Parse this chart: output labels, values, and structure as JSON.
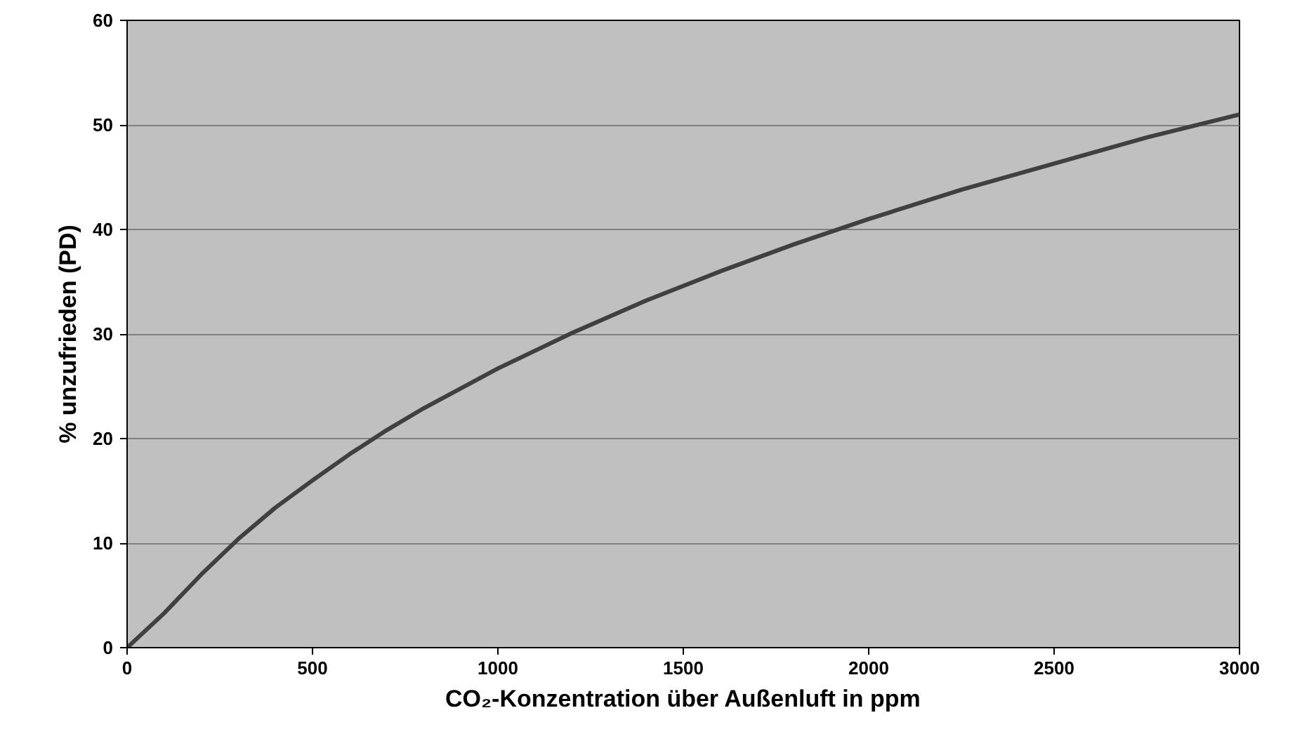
{
  "chart_data": {
    "type": "line",
    "xlabel": "CO₂-Konzentration über Außenluft in ppm",
    "ylabel": "% unzufrieden (PD)",
    "x": [
      0,
      100,
      200,
      300,
      400,
      500,
      600,
      700,
      800,
      1000,
      1200,
      1400,
      1600,
      1800,
      2000,
      2250,
      2500,
      2750,
      3000
    ],
    "series": [
      {
        "color": "#404040",
        "values": [
          0,
          3.3,
          7.0,
          10.4,
          13.4,
          16.0,
          18.5,
          20.8,
          22.9,
          26.7,
          30.1,
          33.2,
          36.0,
          38.6,
          41.0,
          43.8,
          46.3,
          48.8,
          51.0
        ]
      }
    ],
    "xlim": [
      0,
      3000
    ],
    "xticks": [
      0,
      500,
      1000,
      1500,
      2000,
      2500,
      3000
    ],
    "ylim": [
      0,
      60
    ],
    "yticks": [
      0,
      10,
      20,
      30,
      40,
      50,
      60
    ],
    "grid": "y",
    "marker": "none",
    "line_style": "solid"
  }
}
